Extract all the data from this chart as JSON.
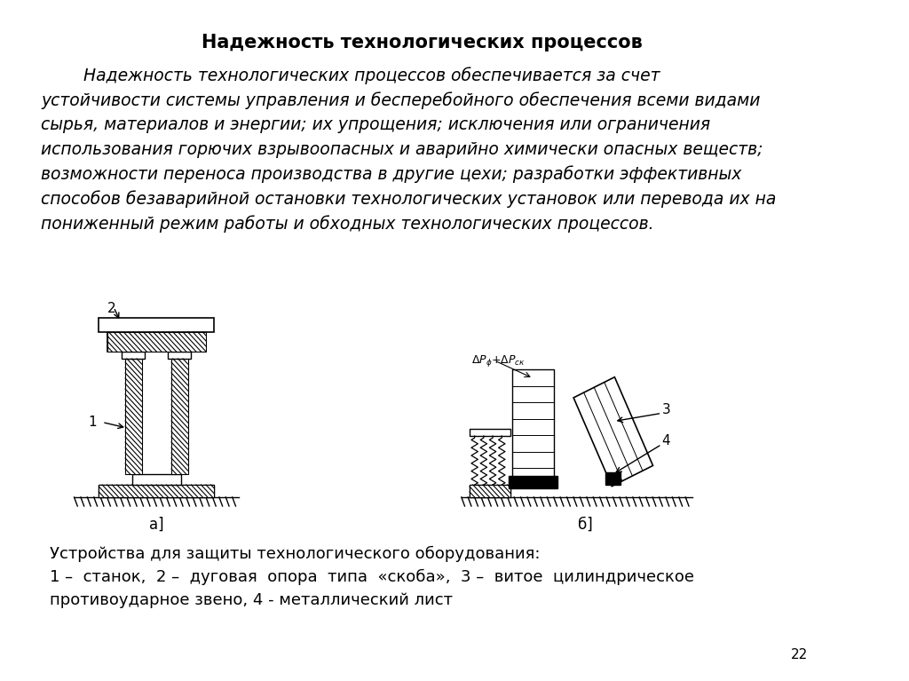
{
  "title": "Надежность технологических процессов",
  "body_text": "        Надежность технологических процессов обеспечивается за счет\nустойчивости системы управления и бесперебойного обеспечения всеми видами\nсырья, материалов и энергии; их упрощения; исключения или ограничения\nиспользования горючих взрывоопасных и аварийно химически опасных веществ;\nвозможности переноса производства в другие цехи; разработки эффективных\nспособов безаварийной остановки технологических установок или перевода их на\nпониженный режим работы и обходных технологических процессов.",
  "caption_line1": "Устройства для защиты технологического оборудования:",
  "caption_line2": "1 –  станок,  2 –  дуговая  опора  типа  «скоба»,  3 –  витое  цилиндрическое",
  "caption_line3": "противоударное звено, 4 - металлический лист",
  "label_a": "а]",
  "label_b": "б]",
  "page_num": "22",
  "bg_color": "#ffffff",
  "text_color": "#000000",
  "title_fontsize": 15,
  "body_fontsize": 13.5,
  "caption_fontsize": 13
}
